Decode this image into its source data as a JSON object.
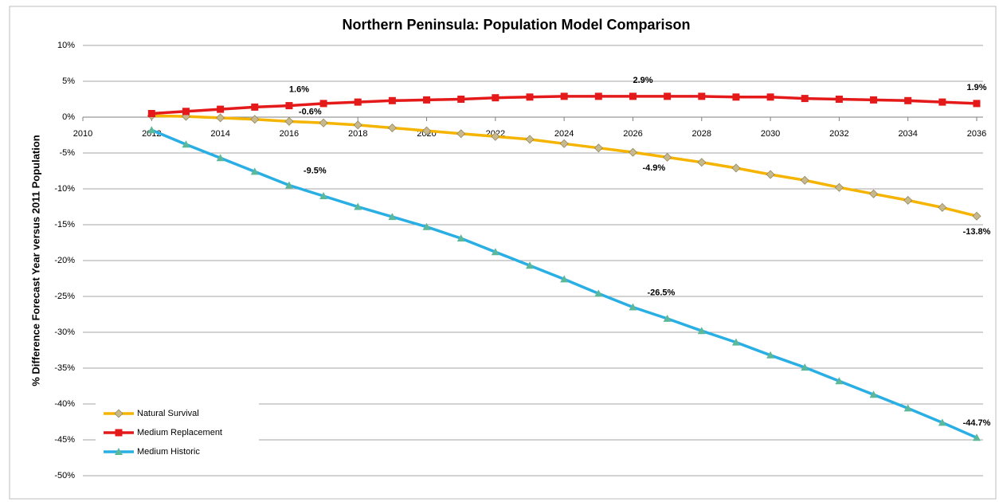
{
  "chart_data": {
    "type": "line",
    "title": "Northern Peninsula: Population Model Comparison",
    "y_label": "% Difference Forecast Year versus 2011 Population",
    "x": [
      2012,
      2013,
      2014,
      2015,
      2016,
      2017,
      2018,
      2019,
      2020,
      2021,
      2022,
      2023,
      2024,
      2025,
      2026,
      2027,
      2028,
      2029,
      2030,
      2031,
      2032,
      2033,
      2034,
      2035,
      2036
    ],
    "xlim": [
      2010,
      2036
    ],
    "xticks": [
      2010,
      2012,
      2014,
      2016,
      2018,
      2020,
      2022,
      2024,
      2026,
      2028,
      2030,
      2032,
      2034,
      2036
    ],
    "ylim": [
      -50,
      10
    ],
    "yticks": [
      {
        "value": 10,
        "label": "10%"
      },
      {
        "value": 5,
        "label": "5%"
      },
      {
        "value": 0,
        "label": "0%"
      },
      {
        "value": -5,
        "label": "-5%"
      },
      {
        "value": -10,
        "label": "-10%"
      },
      {
        "value": -15,
        "label": "-15%"
      },
      {
        "value": -20,
        "label": "-20%"
      },
      {
        "value": -25,
        "label": "-25%"
      },
      {
        "value": -30,
        "label": "-30%"
      },
      {
        "value": -35,
        "label": "-35%"
      },
      {
        "value": -40,
        "label": "-40%"
      },
      {
        "value": -45,
        "label": "-45%"
      },
      {
        "value": -50,
        "label": "-50%"
      }
    ],
    "grid": true,
    "legend": "lower left",
    "series": [
      {
        "name": "Natural Survival",
        "color": "#f5b400",
        "marker": "diamond",
        "marker_color": "#c8b98c",
        "values": [
          0.2,
          0.1,
          -0.1,
          -0.3,
          -0.6,
          -0.8,
          -1.1,
          -1.5,
          -1.9,
          -2.3,
          -2.7,
          -3.1,
          -3.7,
          -4.3,
          -4.9,
          -5.6,
          -6.3,
          -7.1,
          -8.0,
          -8.8,
          -9.8,
          -10.7,
          -11.6,
          -12.6,
          -13.8
        ],
        "value_labels": [
          null,
          null,
          null,
          null,
          "-0.6%",
          null,
          null,
          null,
          null,
          null,
          null,
          null,
          null,
          null,
          "-4.9%",
          null,
          null,
          null,
          null,
          null,
          null,
          null,
          null,
          null,
          "-13.8%"
        ]
      },
      {
        "name": "Medium Replacement",
        "color": "#e41a1a",
        "marker": "square",
        "marker_color": "#e41a1a",
        "values": [
          0.5,
          0.8,
          1.1,
          1.4,
          1.6,
          1.9,
          2.1,
          2.3,
          2.4,
          2.5,
          2.7,
          2.8,
          2.9,
          2.9,
          2.9,
          2.9,
          2.9,
          2.8,
          2.8,
          2.6,
          2.5,
          2.4,
          2.3,
          2.1,
          1.9
        ],
        "value_labels": [
          null,
          null,
          null,
          null,
          "1.6%",
          null,
          null,
          null,
          null,
          null,
          null,
          null,
          null,
          null,
          "2.9%",
          null,
          null,
          null,
          null,
          null,
          null,
          null,
          null,
          null,
          "1.9%"
        ]
      },
      {
        "name": "Medium Historic",
        "color": "#29afe3",
        "marker": "triangle",
        "marker_color": "#5cb89a",
        "values": [
          -1.8,
          -3.8,
          -5.7,
          -7.6,
          -9.5,
          -11.0,
          -12.5,
          -13.9,
          -15.3,
          -16.9,
          -18.8,
          -20.7,
          -22.6,
          -24.6,
          -26.5,
          -28.1,
          -29.8,
          -31.4,
          -33.2,
          -34.9,
          -36.8,
          -38.7,
          -40.6,
          -42.6,
          -44.7
        ],
        "value_labels": [
          null,
          null,
          null,
          null,
          "-9.5%",
          null,
          null,
          null,
          null,
          null,
          null,
          null,
          null,
          null,
          "-26.5%",
          null,
          null,
          null,
          null,
          null,
          null,
          null,
          null,
          null,
          "-44.7%"
        ]
      }
    ]
  }
}
